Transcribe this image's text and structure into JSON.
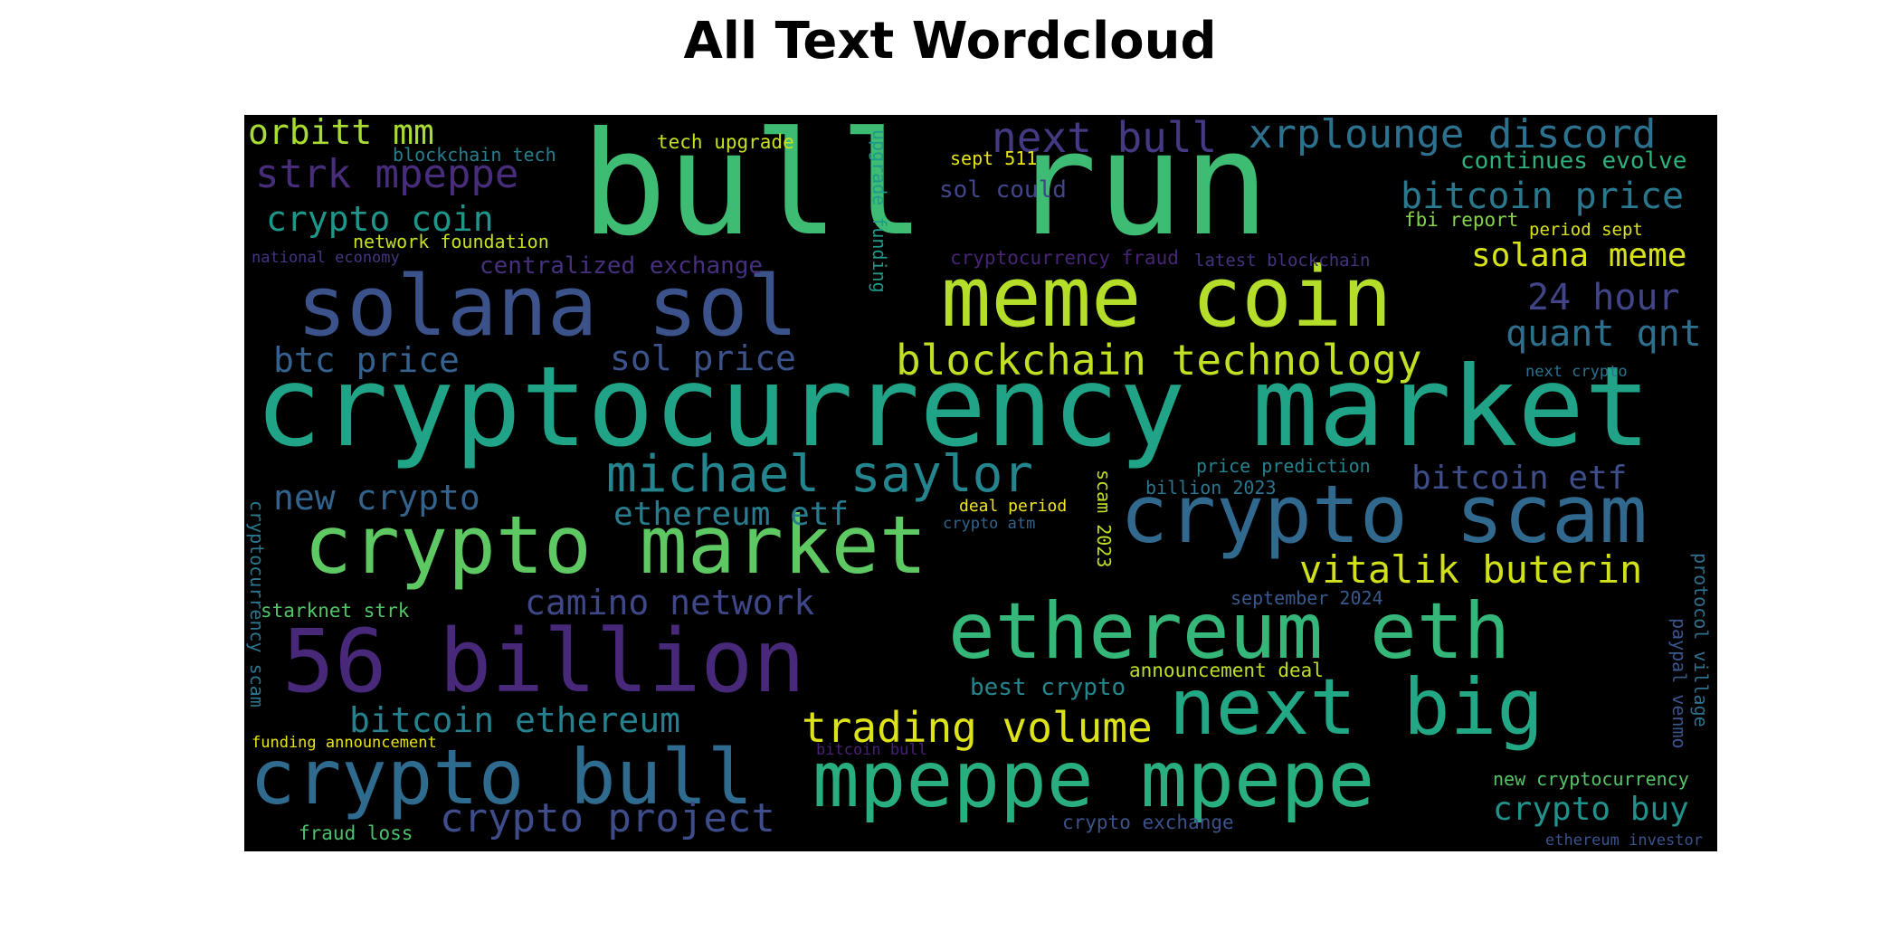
{
  "title": "All Text Wordcloud",
  "colors": {
    "purple_dark": "#482878",
    "purple": "#472d7b",
    "indigo": "#3e4a89",
    "blue": "#31688e",
    "teal_blue": "#26828e",
    "teal": "#1f9e89",
    "green": "#35b779",
    "green_light": "#6ece58",
    "lime": "#b5de2b",
    "yellow": "#fde725"
  },
  "words": [
    {
      "text": "bull run",
      "color": "#3fbc73"
    },
    {
      "text": "cryptocurrency market",
      "color": "#20a386"
    },
    {
      "text": "solana sol",
      "color": "#3b528b"
    },
    {
      "text": "meme coin",
      "color": "#b5de2b"
    },
    {
      "text": "crypto scam",
      "color": "#31688e"
    },
    {
      "text": "crypto market",
      "color": "#5ec962"
    },
    {
      "text": "56 billion",
      "color": "#482878"
    },
    {
      "text": "ethereum eth",
      "color": "#35b779"
    },
    {
      "text": "next big",
      "color": "#22a884"
    },
    {
      "text": "crypto bull",
      "color": "#2f6b8e"
    },
    {
      "text": "mpeppe mpepe",
      "color": "#29af7f"
    },
    {
      "text": "michael saylor",
      "color": "#25858e"
    },
    {
      "text": "blockchain technology",
      "color": "#c2df23"
    },
    {
      "text": "vitalik buterin",
      "color": "#d0e11c"
    },
    {
      "text": "trading volume",
      "color": "#dde318"
    },
    {
      "text": "crypto project",
      "color": "#3e4c8a"
    },
    {
      "text": "xrplounge discord",
      "color": "#2c728e"
    },
    {
      "text": "next bull",
      "color": "#443a83"
    },
    {
      "text": "strk mpeppe",
      "color": "#472d7b"
    },
    {
      "text": "orbitt mm",
      "color": "#a8db34"
    },
    {
      "text": "crypto coin",
      "color": "#1f968b"
    },
    {
      "text": "bitcoin price",
      "color": "#2a788e"
    },
    {
      "text": "solana meme",
      "color": "#d8e219"
    },
    {
      "text": "24 hour",
      "color": "#414487"
    },
    {
      "text": "quant qnt",
      "color": "#2d708e"
    },
    {
      "text": "btc price",
      "color": "#34618d"
    },
    {
      "text": "sol price",
      "color": "#3b528b"
    },
    {
      "text": "new crypto",
      "color": "#33638d"
    },
    {
      "text": "ethereum etf",
      "color": "#287c8e"
    },
    {
      "text": "bitcoin etf",
      "color": "#3d4e8a"
    },
    {
      "text": "camino network",
      "color": "#3f4788"
    },
    {
      "text": "bitcoin ethereum",
      "color": "#26818e"
    },
    {
      "text": "crypto buy",
      "color": "#21918c"
    },
    {
      "text": "centralized exchange",
      "color": "#46307e"
    },
    {
      "text": "tech upgrade",
      "color": "#cae11f"
    },
    {
      "text": "blockchain tech",
      "color": "#277f8e"
    },
    {
      "text": "network foundation",
      "color": "#c8e020"
    },
    {
      "text": "national economy",
      "color": "#453581"
    },
    {
      "text": "sept 511",
      "color": "#e5e419"
    },
    {
      "text": "sol could",
      "color": "#404688"
    },
    {
      "text": "continues evolve",
      "color": "#2db27d"
    },
    {
      "text": "fbi report",
      "color": "#84d44b"
    },
    {
      "text": "period sept",
      "color": "#dae319"
    },
    {
      "text": "cryptocurrency fraud",
      "color": "#482475"
    },
    {
      "text": "latest blockchain",
      "color": "#46327e"
    },
    {
      "text": "next crypto",
      "color": "#2c728e"
    },
    {
      "text": "price prediction",
      "color": "#25838e"
    },
    {
      "text": "billion 2023",
      "color": "#2b758e"
    },
    {
      "text": "deal period",
      "color": "#f1e51d"
    },
    {
      "text": "crypto atm",
      "color": "#32648e"
    },
    {
      "text": "september 2024",
      "color": "#38598c"
    },
    {
      "text": "starknet strk",
      "color": "#52c569"
    },
    {
      "text": "best crypto",
      "color": "#24878e"
    },
    {
      "text": "announcement deal",
      "color": "#bddf26"
    },
    {
      "text": "funding announcement",
      "color": "#e7e419"
    },
    {
      "text": "bitcoin bull",
      "color": "#482173"
    },
    {
      "text": "new cryptocurrency",
      "color": "#54c568"
    },
    {
      "text": "fraud loss",
      "color": "#4ac16d"
    },
    {
      "text": "crypto exchange",
      "color": "#3b528b"
    },
    {
      "text": "ethereum investor",
      "color": "#3b528b"
    },
    {
      "text": "upgrade funding",
      "color": "#1f998a"
    },
    {
      "text": "scam 2023",
      "color": "#c0df25"
    },
    {
      "text": "cryptocurrency scam",
      "color": "#2a768e"
    },
    {
      "text": "paypal venmo",
      "color": "#3a548c"
    },
    {
      "text": "protocol village",
      "color": "#2d718e"
    }
  ]
}
